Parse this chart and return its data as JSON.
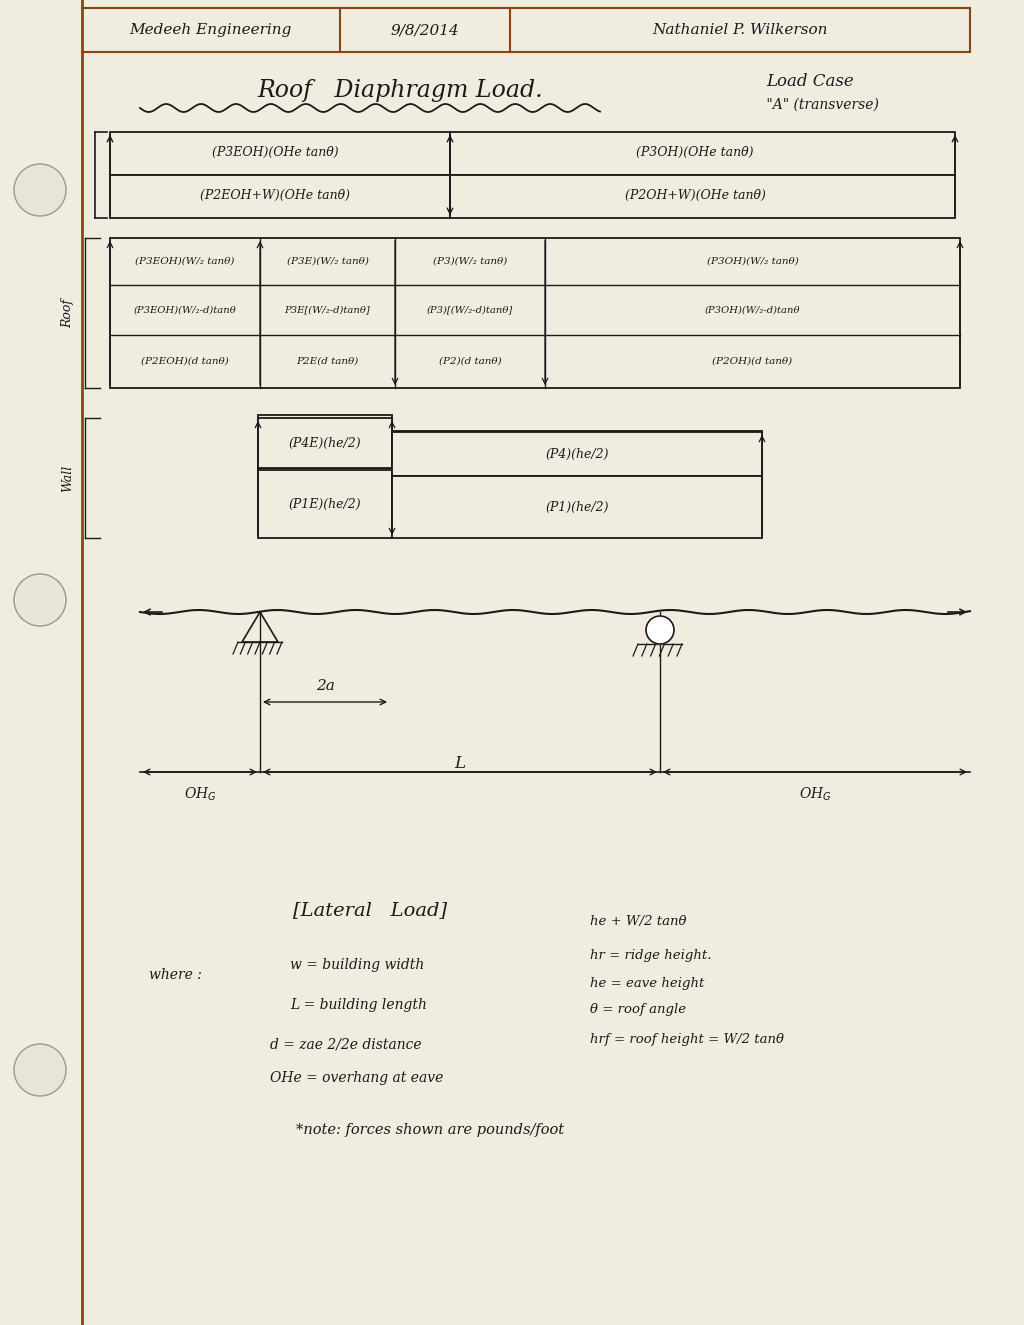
{
  "bg_color": "#f0ede0",
  "line_color": "#1a1a1a",
  "border_color": "#8B4513",
  "header_left": "Medeeh Engineering",
  "header_date": "9/8/2014",
  "header_name": "Nathaniel P. Wilkerson",
  "figsize": [
    10.24,
    13.25
  ],
  "dpi": 100
}
